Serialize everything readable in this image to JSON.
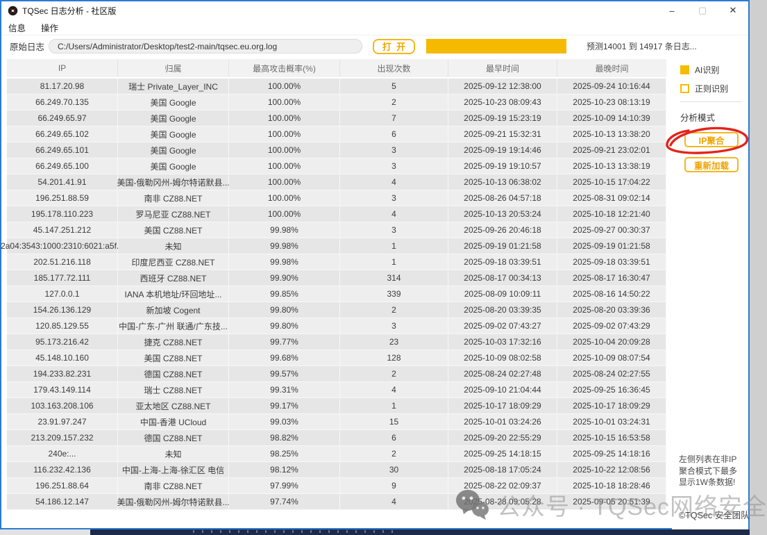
{
  "window": {
    "title": "TQSec 日志分析 - 社区版",
    "controls": {
      "minimize": "–",
      "maximize": "▢",
      "close": "✕"
    }
  },
  "menu": {
    "items": [
      {
        "label": "信息"
      },
      {
        "label": "操作"
      }
    ]
  },
  "toolbar": {
    "source_label": "原始日志",
    "path": "C:/Users/Administrator/Desktop/test2-main/tqsec.eu.org.log",
    "open_label": "打开",
    "progress_percent": 100,
    "estimate_text": "预测14001 到 14917 条日志..."
  },
  "table": {
    "columns": [
      "IP",
      "归属",
      "最高攻击概率(%)",
      "出现次数",
      "最早时间",
      "最晚时间"
    ],
    "rows": [
      [
        "81.17.20.98",
        "瑞士 Private_Layer_INC",
        "100.00%",
        "5",
        "2025-09-12 12:38:00",
        "2025-09-24 10:16:44"
      ],
      [
        "66.249.70.135",
        "美国 Google",
        "100.00%",
        "2",
        "2025-10-23 08:09:43",
        "2025-10-23 08:13:19"
      ],
      [
        "66.249.65.97",
        "美国 Google",
        "100.00%",
        "7",
        "2025-09-19 15:23:19",
        "2025-10-09 14:10:39"
      ],
      [
        "66.249.65.102",
        "美国 Google",
        "100.00%",
        "6",
        "2025-09-21 15:32:31",
        "2025-10-13 13:38:20"
      ],
      [
        "66.249.65.101",
        "美国 Google",
        "100.00%",
        "3",
        "2025-09-19 19:14:46",
        "2025-09-21 23:02:01"
      ],
      [
        "66.249.65.100",
        "美国 Google",
        "100.00%",
        "3",
        "2025-09-19 19:10:57",
        "2025-10-13 13:38:19"
      ],
      [
        "54.201.41.91",
        "美国-俄勒冈州-姆尔特诺默县...",
        "100.00%",
        "4",
        "2025-10-13 06:38:02",
        "2025-10-15 17:04:22"
      ],
      [
        "196.251.88.59",
        "南非 CZ88.NET",
        "100.00%",
        "3",
        "2025-08-26 04:57:18",
        "2025-08-31 09:02:14"
      ],
      [
        "195.178.110.223",
        "罗马尼亚 CZ88.NET",
        "100.00%",
        "4",
        "2025-10-13 20:53:24",
        "2025-10-18 12:21:40"
      ],
      [
        "45.147.251.212",
        "美国 CZ88.NET",
        "99.98%",
        "3",
        "2025-09-26 20:46:18",
        "2025-09-27 00:30:37"
      ],
      [
        "2a04:3543:1000:2310:6021:a5f...",
        "未知",
        "99.98%",
        "1",
        "2025-09-19 01:21:58",
        "2025-09-19 01:21:58"
      ],
      [
        "202.51.216.118",
        "印度尼西亚 CZ88.NET",
        "99.98%",
        "1",
        "2025-09-18 03:39:51",
        "2025-09-18 03:39:51"
      ],
      [
        "185.177.72.111",
        "西班牙 CZ88.NET",
        "99.90%",
        "314",
        "2025-08-17 00:34:13",
        "2025-08-17 16:30:47"
      ],
      [
        "127.0.0.1",
        "IANA 本机地址/环回地址...",
        "99.85%",
        "339",
        "2025-08-09 10:09:11",
        "2025-08-16 14:50:22"
      ],
      [
        "154.26.136.129",
        "新加坡 Cogent",
        "99.80%",
        "2",
        "2025-08-20 03:39:35",
        "2025-08-20 03:39:36"
      ],
      [
        "120.85.129.55",
        "中国-广东-广州 联通/广东技...",
        "99.80%",
        "3",
        "2025-09-02 07:43:27",
        "2025-09-02 07:43:29"
      ],
      [
        "95.173.216.42",
        "捷克 CZ88.NET",
        "99.77%",
        "23",
        "2025-10-03 17:32:16",
        "2025-10-04 20:09:28"
      ],
      [
        "45.148.10.160",
        "美国 CZ88.NET",
        "99.68%",
        "128",
        "2025-10-09 08:02:58",
        "2025-10-09 08:07:54"
      ],
      [
        "194.233.82.231",
        "德国 CZ88.NET",
        "99.57%",
        "2",
        "2025-08-24 02:27:48",
        "2025-08-24 02:27:55"
      ],
      [
        "179.43.149.114",
        "瑞士 CZ88.NET",
        "99.31%",
        "4",
        "2025-09-10 21:04:44",
        "2025-09-25 16:36:45"
      ],
      [
        "103.163.208.106",
        "亚太地区 CZ88.NET",
        "99.17%",
        "1",
        "2025-10-17 18:09:29",
        "2025-10-17 18:09:29"
      ],
      [
        "23.91.97.247",
        "中国-香港 UCloud",
        "99.03%",
        "15",
        "2025-10-01 03:24:26",
        "2025-10-01 03:24:31"
      ],
      [
        "213.209.157.232",
        "德国 CZ88.NET",
        "98.82%",
        "6",
        "2025-09-20 22:55:29",
        "2025-10-15 16:53:58"
      ],
      [
        "240e:...",
        "未知",
        "98.25%",
        "2",
        "2025-09-25 14:18:15",
        "2025-09-25 14:18:16"
      ],
      [
        "116.232.42.136",
        "中国-上海-上海-徐汇区 电信",
        "98.12%",
        "30",
        "2025-08-18 17:05:24",
        "2025-10-22 12:08:56"
      ],
      [
        "196.251.88.64",
        "南非 CZ88.NET",
        "97.99%",
        "9",
        "2025-08-22 02:09:37",
        "2025-10-18 18:28:46"
      ],
      [
        "54.186.12.147",
        "美国-俄勒冈州-姆尔特诺默县...",
        "97.74%",
        "4",
        "2025-08-28 09:05:28",
        "2025-09-05 20:51:39"
      ]
    ]
  },
  "sidebar": {
    "legend": [
      {
        "label": "AI识别",
        "filled": true
      },
      {
        "label": "正则识别",
        "filled": false
      }
    ],
    "mode_label": "分析模式",
    "buttons": [
      {
        "label": "IP聚合"
      },
      {
        "label": "重新加载"
      }
    ],
    "note": "左侧列表在非IP聚合模式下最多显示1W条数据!",
    "copyright": "©TQSec 安全团队"
  },
  "watermark": {
    "text": "公众号 · TQSec网络安全"
  },
  "colors": {
    "accent": "#F5BC00",
    "accent_text": "#EFA400",
    "annotation_red": "#E2241B",
    "window_border": "#2B7AD3",
    "navy_strip": "#1E2A4A"
  }
}
